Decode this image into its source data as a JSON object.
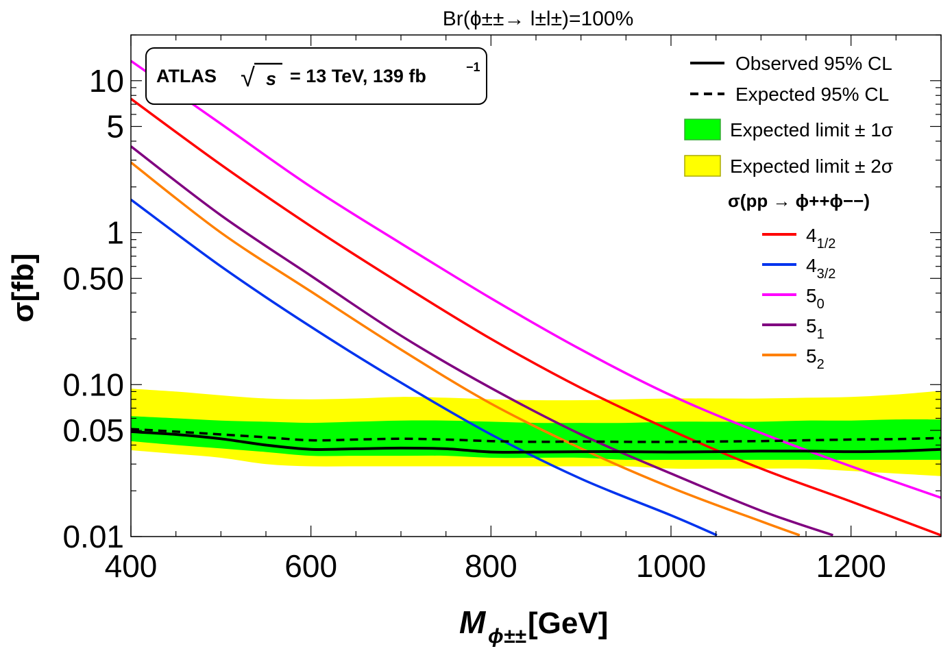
{
  "chart_data": {
    "type": "line",
    "title": "Br(ϕ±±→ l±l±)=100%",
    "xlabel": "Mϕ±±[GeV]",
    "xlabel_main": "M",
    "xlabel_sub": "ϕ±±",
    "xlabel_unit": "[GeV]",
    "ylabel": "σ[fb]",
    "xlim": [
      400,
      1300
    ],
    "ylim": [
      0.01,
      20
    ],
    "yscale": "log",
    "x_ticks": [
      400,
      600,
      800,
      1000,
      1200
    ],
    "x_tick_labels": [
      "400",
      "600",
      "800",
      "1000",
      "1200"
    ],
    "y_ticks": [
      0.01,
      0.05,
      0.1,
      0.5,
      1,
      5,
      10
    ],
    "y_tick_labels": [
      "0.01",
      "0.05",
      "0.10",
      "0.50",
      "1",
      "5",
      "10"
    ],
    "annotation": {
      "experiment": "ATLAS",
      "energy": "= 13 TeV, 139 fb",
      "lumi_exponent": "−1",
      "sqrt_symbol": "√",
      "sqrt_arg": "s"
    },
    "legend": {
      "position": "top-right",
      "observed": "Observed 95% CL",
      "expected": "Expected 95% CL",
      "band1": "Expected limit ± 1σ",
      "band2": "Expected limit ± 2σ",
      "header": "σ(pp → ϕ++ϕ−−)"
    },
    "limits": {
      "x": [
        400,
        450,
        500,
        550,
        600,
        650,
        700,
        750,
        800,
        850,
        900,
        950,
        1000,
        1050,
        1100,
        1150,
        1200,
        1250,
        1300
      ],
      "observed": [
        0.049,
        0.047,
        0.044,
        0.04,
        0.0375,
        0.0378,
        0.0382,
        0.0378,
        0.036,
        0.036,
        0.0362,
        0.0362,
        0.036,
        0.0362,
        0.0365,
        0.0365,
        0.0362,
        0.0365,
        0.0375
      ],
      "expected": [
        0.051,
        0.049,
        0.047,
        0.045,
        0.043,
        0.0435,
        0.044,
        0.0435,
        0.0425,
        0.042,
        0.0422,
        0.042,
        0.042,
        0.0422,
        0.0425,
        0.043,
        0.0435,
        0.0438,
        0.0445
      ],
      "band1_lower": [
        0.0425,
        0.04,
        0.038,
        0.036,
        0.034,
        0.034,
        0.034,
        0.034,
        0.033,
        0.033,
        0.033,
        0.032,
        0.032,
        0.032,
        0.032,
        0.032,
        0.032,
        0.032,
        0.032
      ],
      "band1_upper": [
        0.062,
        0.06,
        0.058,
        0.057,
        0.056,
        0.057,
        0.058,
        0.058,
        0.057,
        0.056,
        0.056,
        0.056,
        0.057,
        0.057,
        0.057,
        0.058,
        0.058,
        0.059,
        0.059
      ],
      "band2_lower": [
        0.037,
        0.035,
        0.033,
        0.03,
        0.029,
        0.029,
        0.029,
        0.029,
        0.029,
        0.029,
        0.029,
        0.029,
        0.028,
        0.028,
        0.028,
        0.028,
        0.027,
        0.026,
        0.025
      ],
      "band2_upper": [
        0.094,
        0.09,
        0.085,
        0.081,
        0.08,
        0.081,
        0.083,
        0.082,
        0.08,
        0.079,
        0.079,
        0.08,
        0.081,
        0.081,
        0.081,
        0.082,
        0.083,
        0.086,
        0.091
      ]
    },
    "series": [
      {
        "name": "4",
        "sub": "1/2",
        "color": "#ff0000",
        "x": [
          400,
          500,
          600,
          700,
          800,
          900,
          1000,
          1100,
          1200,
          1300
        ],
        "y": [
          7.6,
          2.8,
          1.1,
          0.46,
          0.2,
          0.095,
          0.05,
          0.028,
          0.017,
          0.0102
        ]
      },
      {
        "name": "4",
        "sub": "3/2",
        "color": "#0033ee",
        "x": [
          400,
          500,
          600,
          700,
          800,
          900,
          1000,
          1051
        ],
        "y": [
          1.65,
          0.6,
          0.24,
          0.103,
          0.047,
          0.024,
          0.0138,
          0.0102
        ]
      },
      {
        "name": "5",
        "sub": "0",
        "color": "#ff00ff",
        "x": [
          400,
          500,
          600,
          700,
          800,
          900,
          1000,
          1100,
          1200,
          1300
        ],
        "y": [
          13.5,
          5.2,
          2.0,
          0.85,
          0.37,
          0.17,
          0.085,
          0.048,
          0.029,
          0.018
        ]
      },
      {
        "name": "5",
        "sub": "1",
        "color": "#800080",
        "x": [
          400,
          500,
          600,
          700,
          800,
          900,
          1000,
          1100,
          1180
        ],
        "y": [
          3.7,
          1.3,
          0.52,
          0.21,
          0.095,
          0.047,
          0.026,
          0.0148,
          0.0102
        ]
      },
      {
        "name": "5",
        "sub": "2",
        "color": "#ff8000",
        "x": [
          400,
          500,
          600,
          700,
          800,
          900,
          1000,
          1100,
          1143
        ],
        "y": [
          2.9,
          1.0,
          0.41,
          0.17,
          0.075,
          0.038,
          0.021,
          0.0126,
          0.0102
        ]
      }
    ],
    "colors": {
      "band1": "#00ff00",
      "band2": "#ffff00",
      "limit_line": "#000000"
    }
  }
}
